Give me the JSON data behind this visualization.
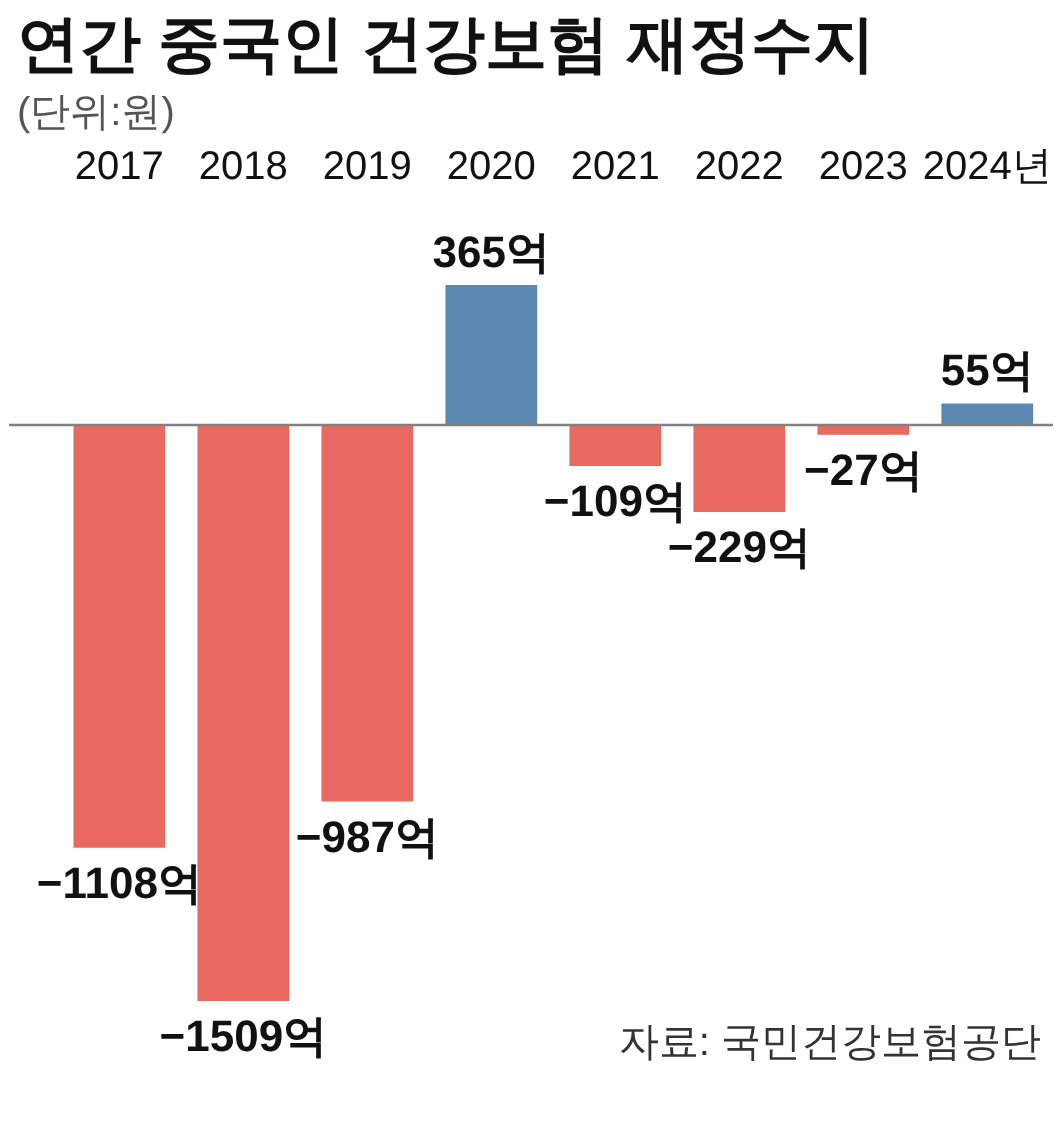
{
  "chart_data": {
    "type": "bar",
    "title": "연간 중국인 건강보험 재정수지",
    "subtitle": "(단위:원)",
    "categories": [
      "2017",
      "2018",
      "2019",
      "2020",
      "2021",
      "2022",
      "2023",
      "2024년"
    ],
    "values": [
      -1108,
      -1509,
      -987,
      365,
      -109,
      -229,
      -27,
      55
    ],
    "colors": [
      "#e8695f",
      "#e8695f",
      "#e8695f",
      "#5b87b1",
      "#e8695f",
      "#e8695f",
      "#e8695f",
      "#5b87b1"
    ],
    "value_labels": [
      "−1108억",
      "−1509억",
      "−987억",
      "365억",
      "−109억",
      "−229억",
      "−27억",
      "55억"
    ],
    "annotations": [
      "자료: 국민건강보험공단"
    ]
  }
}
